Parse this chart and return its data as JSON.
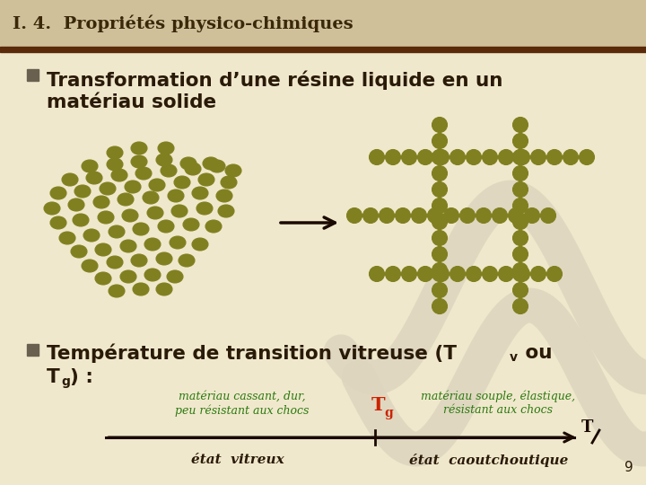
{
  "bg_color": "#F0E8CC",
  "header_bg": "#CFC09A",
  "header_border": "#5A2A0A",
  "header_text": "I. 4.  Propriétés physico-chimiques",
  "header_text_color": "#3A2808",
  "bullet_color": "#6A6050",
  "title1_line1": "Transformation d’une résine liquide en un",
  "title1_line2": "matériau solide",
  "title1_color": "#2A1A08",
  "title2_line1": "Température de transition vitreuse (T",
  "title2_v": "v",
  "title2_ou": " ou",
  "title2_line2a": "T",
  "title2_line2b": "g",
  "title2_line2c": ") :",
  "title2_color": "#2A1A08",
  "dot_color": "#808020",
  "dot_outline": "#5A5A10",
  "arrow_color": "#1A0A00",
  "axis_color": "#1A0A00",
  "tg_color": "#CC2200",
  "green_color": "#2A7A10",
  "label_left1": "matériau cassant, dur,",
  "label_left2": "peu résistant aux chocs",
  "label_right1": "matériau souple, élastique,",
  "label_right2": "résistant aux chocs",
  "label_vitreux": "état  vitreux",
  "label_caoutch": "état  caoutchoutique",
  "wave_color": "#DDD5BE",
  "page_num": "9"
}
